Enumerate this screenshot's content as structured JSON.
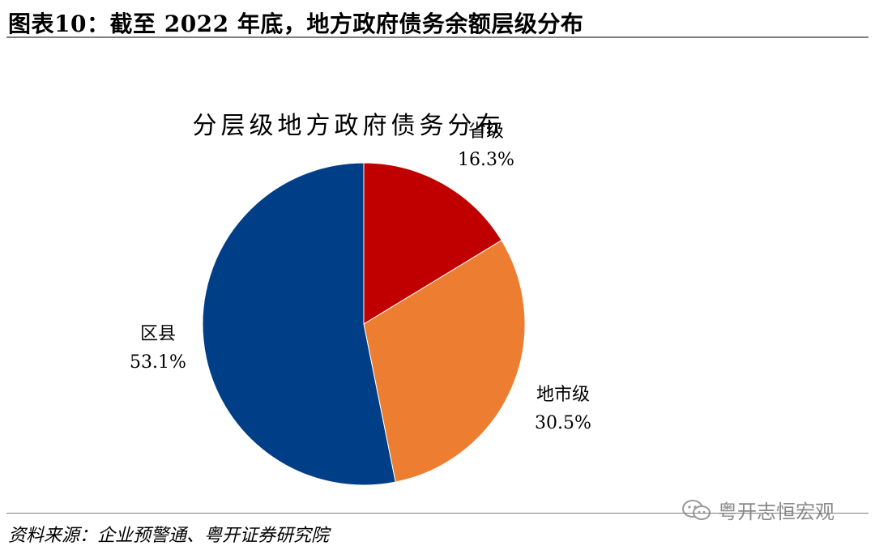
{
  "figure": {
    "title": "图表10：截至 2022 年底，地方政府债务余额层级分布",
    "source": "资料来源：企业预警通、粤开证券研究院",
    "watermark": "粤开志恒宏观"
  },
  "chart_data": {
    "type": "pie",
    "title": "分层级地方政府债务分布",
    "slices": [
      {
        "name": "省级",
        "value": 16.3,
        "value_label": "16.3%",
        "color": "#C00000"
      },
      {
        "name": "地市级",
        "value": 30.5,
        "value_label": "30.5%",
        "color": "#ED7D31"
      },
      {
        "name": "区县",
        "value": 53.1,
        "value_label": "53.1%",
        "color": "#003F87"
      }
    ],
    "start": "12 o'clock",
    "direction": "clockwise"
  },
  "icons": {
    "watermark_icon": "wechat-icon"
  }
}
